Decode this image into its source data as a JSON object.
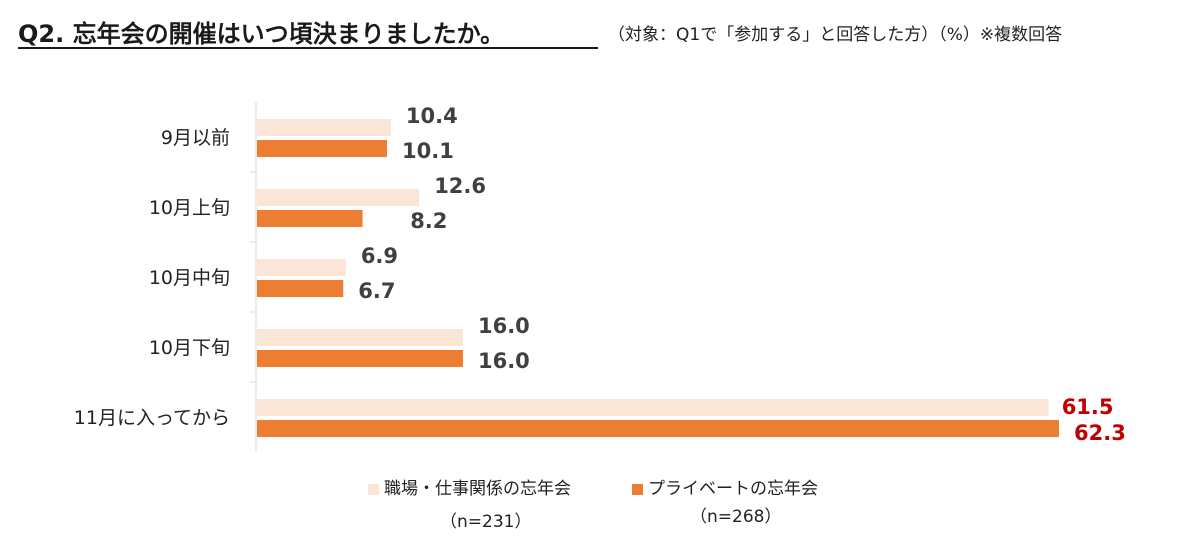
{
  "title": "Q2. 忘年会の開催はいつ頃決まりましたか。",
  "subtitle": "（対象：Q1で「参加する」と回答した方）（%）※複数回答",
  "colors": {
    "series1": "#fbe5d6",
    "series2": "#ed7d31",
    "label_default": "#404040",
    "label_highlight": "#c00000",
    "axis": "#d9d9d9"
  },
  "legend": [
    {
      "label": "職場・仕事関係の忘年会",
      "n": "（n=231）"
    },
    {
      "label": "プライベートの忘年会",
      "n": "（n=268）"
    }
  ],
  "chart_data": {
    "type": "bar",
    "orientation": "horizontal",
    "title": "Q2. 忘年会の開催はいつ頃決まりましたか。",
    "categories": [
      "9月以前",
      "10月上旬",
      "10月中旬",
      "10月下旬",
      "11月に入ってから"
    ],
    "series": [
      {
        "name": "職場・仕事関係の忘年会",
        "values": [
          10.4,
          12.6,
          6.9,
          16.0,
          61.5
        ]
      },
      {
        "name": "プライベートの忘年会",
        "values": [
          10.1,
          8.2,
          6.7,
          16.0,
          62.3
        ]
      }
    ],
    "value_labels": [
      [
        "10.4",
        "12.6",
        "6.9",
        "16.0",
        "61.5"
      ],
      [
        "10.1",
        "8.2",
        "6.7",
        "16.0",
        "62.3"
      ]
    ],
    "highlight_category_index": 4,
    "xlim": [
      0,
      62.3
    ],
    "unit": "%",
    "legend_position": "bottom"
  }
}
